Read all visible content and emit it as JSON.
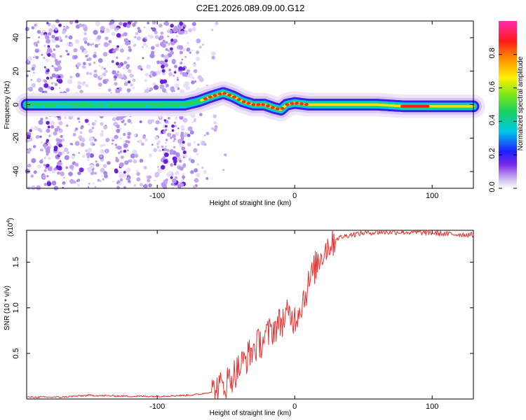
{
  "title": "C2E1.2026.089.09.00.G12",
  "chart_data": [
    {
      "type": "heatmap",
      "xlabel": "Height of straight line (km)",
      "ylabel": "Frequency (Hz)",
      "xlim": [
        -195,
        130
      ],
      "ylim": [
        -50,
        50
      ],
      "xticks": [
        -100,
        0,
        100
      ],
      "xtick_labels": [
        "-100",
        "0",
        "100"
      ],
      "yticks": [
        -40,
        -20,
        0,
        20,
        40
      ],
      "ytick_labels": [
        "-40",
        "-20",
        "0",
        "20",
        "40"
      ],
      "ridge_x": [
        -195,
        -150,
        -100,
        -80,
        -70,
        -60,
        -52,
        -45,
        -38,
        -30,
        -22,
        -15,
        -10,
        -6,
        0,
        10,
        30,
        60,
        80,
        100,
        130
      ],
      "ridge_y": [
        0,
        0,
        0,
        0,
        2,
        5,
        7,
        5,
        2,
        0,
        0,
        -2,
        -3,
        0,
        1,
        0,
        0,
        0,
        -1,
        -1,
        -1
      ],
      "colorbar": {
        "label": "Normalized spectral amplitude",
        "range": [
          0,
          1
        ],
        "ticks": [
          0,
          0.2,
          0.4,
          0.6,
          0.8
        ],
        "tick_labels": [
          "0.0",
          "0.2",
          "0.4",
          "0.6",
          "0.8"
        ]
      }
    },
    {
      "type": "line",
      "xlabel": "Height of straight line (km)",
      "ylabel": "SNR (10 * v/v)",
      "multiplier_base": "(x10",
      "multiplier_exp": "4",
      "multiplier_end": ")",
      "xlim": [
        -195,
        130
      ],
      "ylim": [
        0,
        1.85
      ],
      "xticks": [
        -100,
        0,
        100
      ],
      "xtick_labels": [
        "-100",
        "0",
        "100"
      ],
      "yticks": [
        0.5,
        1.0,
        1.5
      ],
      "ytick_labels": [
        "0.5",
        "1.0",
        "1.5"
      ],
      "color": "#e8322f",
      "x": [
        -195,
        -170,
        -150,
        -120,
        -100,
        -80,
        -70,
        -60,
        -55,
        -50,
        -45,
        -40,
        -35,
        -30,
        -25,
        -20,
        -15,
        -10,
        -5,
        0,
        5,
        10,
        15,
        20,
        25,
        30,
        40,
        50,
        60,
        80,
        100,
        110,
        130
      ],
      "y": [
        0.02,
        0.02,
        0.04,
        0.03,
        0.03,
        0.04,
        0.05,
        0.08,
        0.12,
        0.18,
        0.26,
        0.35,
        0.45,
        0.55,
        0.62,
        0.7,
        0.78,
        0.85,
        0.92,
        0.88,
        1.05,
        1.25,
        1.45,
        1.6,
        1.7,
        1.76,
        1.8,
        1.82,
        1.83,
        1.83,
        1.82,
        1.81,
        1.8
      ]
    }
  ]
}
